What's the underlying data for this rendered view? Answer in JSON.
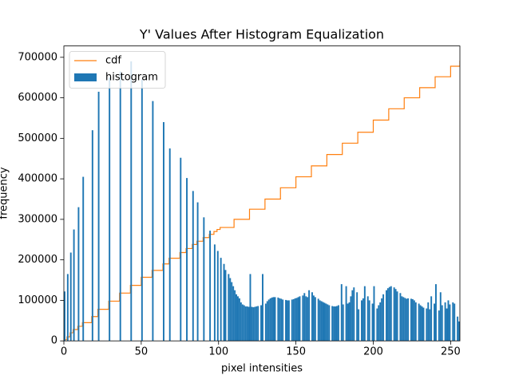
{
  "chart_data": {
    "type": "histogram",
    "title": "Y' Values After Histogram Equalization",
    "x_label": "pixel intensities",
    "y_label": "frequency",
    "xlim": [
      0,
      256
    ],
    "ylim": [
      0,
      728000
    ],
    "xticks": [
      0,
      50,
      100,
      150,
      200,
      250
    ],
    "yticks": [
      0,
      100000,
      200000,
      300000,
      400000,
      500000,
      600000,
      700000
    ],
    "legend": "upper left",
    "bins": [
      0,
      1,
      2,
      3,
      4,
      5,
      6,
      7,
      8,
      9,
      10,
      11,
      12,
      13,
      14,
      15,
      16,
      17,
      18,
      19,
      20,
      21,
      22,
      23,
      24,
      25,
      26,
      27,
      28,
      29,
      30,
      31,
      32,
      33,
      34,
      35,
      36,
      37,
      38,
      39,
      40,
      41,
      42,
      43,
      44,
      45,
      46,
      47,
      48,
      49,
      50,
      51,
      52,
      53,
      54,
      55,
      56,
      57,
      58,
      59,
      60,
      61,
      62,
      63,
      64,
      65,
      66,
      67,
      68,
      69,
      70,
      71,
      72,
      73,
      74,
      75,
      76,
      77,
      78,
      79,
      80,
      81,
      82,
      83,
      84,
      85,
      86,
      87,
      88,
      89,
      90,
      91,
      92,
      93,
      94,
      95,
      96,
      97,
      98,
      99,
      100,
      101,
      102,
      103,
      104,
      105,
      106,
      107,
      108,
      109,
      110,
      111,
      112,
      113,
      114,
      115,
      116,
      117,
      118,
      119,
      120,
      121,
      122,
      123,
      124,
      125,
      126,
      127,
      128,
      129,
      130,
      131,
      132,
      133,
      134,
      135,
      136,
      137,
      138,
      139,
      140,
      141,
      142,
      143,
      144,
      145,
      146,
      147,
      148,
      149,
      150,
      151,
      152,
      153,
      154,
      155,
      156,
      157,
      158,
      159,
      160,
      161,
      162,
      163,
      164,
      165,
      166,
      167,
      168,
      169,
      170,
      171,
      172,
      173,
      174,
      175,
      176,
      177,
      178,
      179,
      180,
      181,
      182,
      183,
      184,
      185,
      186,
      187,
      188,
      189,
      190,
      191,
      192,
      193,
      194,
      195,
      196,
      197,
      198,
      199,
      200,
      201,
      202,
      203,
      204,
      205,
      206,
      207,
      208,
      209,
      210,
      211,
      212,
      213,
      214,
      215,
      216,
      217,
      218,
      219,
      220,
      221,
      222,
      223,
      224,
      225,
      226,
      227,
      228,
      229,
      230,
      231,
      232,
      233,
      234,
      235,
      236,
      237,
      238,
      239,
      240,
      241,
      242,
      243,
      244,
      245,
      246,
      247,
      248,
      249,
      250,
      251,
      252,
      253,
      254,
      255,
      256
    ],
    "series": [
      {
        "name": "cdf",
        "color": "#ff7f0e",
        "drawstyle": "steps-post",
        "x": [
          0,
          2,
          4,
          6,
          9,
          12,
          18,
          22,
          29,
          36,
          43,
          50,
          57,
          64,
          68,
          75,
          79,
          83,
          86,
          90,
          94,
          97,
          99,
          101,
          110,
          120,
          130,
          140,
          150,
          160,
          170,
          180,
          190,
          200,
          210,
          220,
          230,
          240,
          250,
          256
        ],
        "values": [
          3000,
          10000,
          20000,
          28000,
          36000,
          45000,
          60000,
          78000,
          98000,
          118000,
          137000,
          157000,
          174000,
          190000,
          204000,
          218000,
          228000,
          238000,
          246000,
          255000,
          263000,
          270000,
          275000,
          280000,
          300000,
          325000,
          350000,
          378000,
          405000,
          432000,
          460000,
          488000,
          515000,
          545000,
          573000,
          600000,
          625000,
          652000,
          678000,
          692000
        ]
      },
      {
        "name": "histogram",
        "color": "#1f77b4",
        "values": [
          122000,
          0,
          165000,
          0,
          218000,
          0,
          275000,
          0,
          0,
          330000,
          0,
          0,
          405000,
          0,
          0,
          0,
          0,
          0,
          520000,
          0,
          0,
          0,
          615000,
          0,
          0,
          0,
          0,
          0,
          0,
          650000,
          0,
          0,
          0,
          0,
          0,
          0,
          665000,
          0,
          0,
          0,
          0,
          0,
          0,
          690000,
          0,
          0,
          0,
          0,
          0,
          0,
          645000,
          0,
          0,
          0,
          0,
          0,
          0,
          592000,
          0,
          0,
          0,
          0,
          0,
          0,
          540000,
          0,
          0,
          0,
          475000,
          0,
          0,
          0,
          0,
          0,
          0,
          452000,
          0,
          0,
          0,
          402000,
          0,
          0,
          0,
          370000,
          0,
          0,
          342000,
          0,
          0,
          0,
          305000,
          0,
          0,
          0,
          272000,
          0,
          0,
          238000,
          0,
          222000,
          0,
          205000,
          0,
          190000,
          175000,
          0,
          165000,
          155000,
          145000,
          135000,
          125000,
          115000,
          110000,
          105000,
          95000,
          90000,
          88000,
          85000,
          85000,
          84000,
          165000,
          84000,
          83000,
          84000,
          85000,
          86000,
          0,
          88000,
          165000,
          0,
          92000,
          98000,
          102000,
          105000,
          107000,
          108000,
          108000,
          0,
          107000,
          105000,
          104000,
          102000,
          0,
          101000,
          100000,
          100000,
          0,
          102000,
          103000,
          105000,
          106000,
          108000,
          110000,
          0,
          112000,
          118000,
          110000,
          108000,
          125000,
          0,
          120000,
          112000,
          108000,
          0,
          104000,
          100000,
          98000,
          96000,
          94000,
          92000,
          90000,
          88000,
          0,
          86000,
          85000,
          85000,
          86000,
          88000,
          0,
          140000,
          90000,
          0,
          135000,
          92000,
          95000,
          110000,
          125000,
          132000,
          0,
          120000,
          78000,
          0,
          100000,
          105000,
          135000,
          0,
          110000,
          100000,
          0,
          92000,
          135000,
          0,
          80000,
          88000,
          95000,
          105000,
          115000,
          0,
          125000,
          130000,
          133000,
          135000,
          0,
          132000,
          128000,
          122000,
          0,
          118000,
          110000,
          108000,
          106000,
          104000,
          105000,
          0,
          104000,
          103000,
          100000,
          95000,
          0,
          92000,
          88000,
          85000,
          82000,
          0,
          80000,
          95000,
          78000,
          110000,
          0,
          92000,
          140000,
          0,
          75000,
          120000,
          88000,
          0,
          95000,
          80000,
          100000,
          90000,
          0,
          95000,
          92000,
          0,
          60000,
          48000
        ]
      }
    ]
  }
}
